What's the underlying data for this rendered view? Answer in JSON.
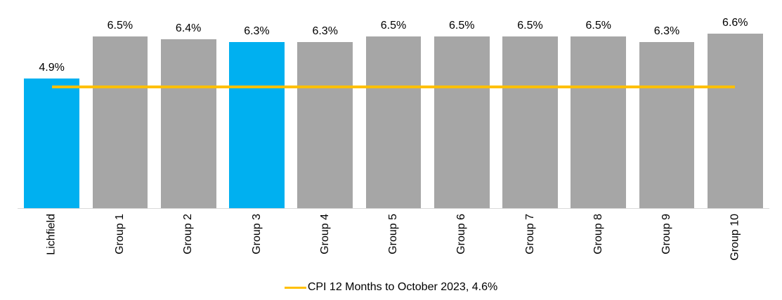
{
  "chart_data": {
    "type": "bar",
    "categories": [
      "Lichfield",
      "Group 1",
      "Group 2",
      "Group 3",
      "Group 4",
      "Group 5",
      "Group 6",
      "Group 7",
      "Group 8",
      "Group 9",
      "Group 10"
    ],
    "values": [
      4.9,
      6.5,
      6.4,
      6.3,
      6.3,
      6.5,
      6.5,
      6.5,
      6.5,
      6.3,
      6.6
    ],
    "value_labels": [
      "4.9%",
      "6.5%",
      "6.4%",
      "6.3%",
      "6.3%",
      "6.5%",
      "6.5%",
      "6.5%",
      "6.5%",
      "6.3%",
      "6.6%"
    ],
    "highlighted_indices": [
      0,
      3
    ],
    "colors": {
      "highlight": "#00b0f0",
      "default": "#a6a6a6",
      "reference_line": "#ffc000",
      "axis": "#d9d9d9",
      "label_text": "#000000"
    },
    "reference_line": {
      "value": 4.6,
      "legend_label": "CPI 12 Months to October 2023, 4.6%"
    },
    "title": "",
    "xlabel": "",
    "ylabel": "",
    "ylim": [
      0,
      7.61
    ],
    "grid": false,
    "legend_position": "bottom",
    "x_tick_rotation": 90
  }
}
